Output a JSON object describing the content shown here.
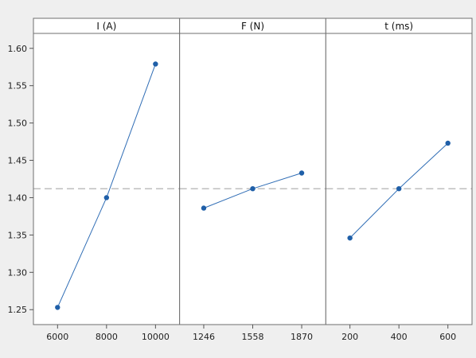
{
  "chart_data": {
    "type": "line",
    "title": "",
    "ylabel": "",
    "ylim": [
      1.23,
      1.62
    ],
    "y_ticks": [
      1.25,
      1.3,
      1.35,
      1.4,
      1.45,
      1.5,
      1.55,
      1.6
    ],
    "y_tick_labels": [
      "1.25",
      "1.30",
      "1.35",
      "1.40",
      "1.45",
      "1.50",
      "1.55",
      "1.60"
    ],
    "reference_line": 1.412,
    "grid": false,
    "colors": {
      "line": "#2f6db5",
      "marker": "#1f5fa8",
      "reference": "#a8a8a8",
      "panel_bg": "#ffffff",
      "figure_bg": "#efefef",
      "header_bg": "#ffffff"
    },
    "panels": [
      {
        "factor": "I (A)",
        "x": [
          "6000",
          "8000",
          "10000"
        ],
        "y": [
          1.253,
          1.4,
          1.579
        ]
      },
      {
        "factor": "F (N)",
        "x": [
          "1246",
          "1558",
          "1870"
        ],
        "y": [
          1.386,
          1.412,
          1.433
        ]
      },
      {
        "factor": "t (ms)",
        "x": [
          "200",
          "400",
          "600"
        ],
        "y": [
          1.346,
          1.412,
          1.473
        ]
      }
    ]
  }
}
